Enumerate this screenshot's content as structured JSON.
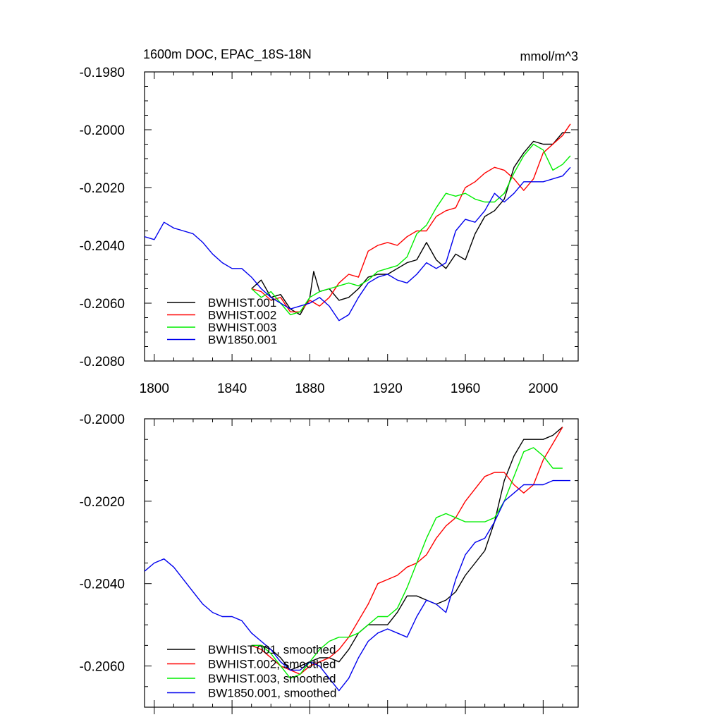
{
  "chart_data": [
    {
      "type": "line",
      "title": "1600m DOC, EPAC_18S-18N",
      "units": "mmol/m^3",
      "xlim": [
        1795,
        2018
      ],
      "ylim": [
        -0.208,
        -0.198
      ],
      "xticks": [
        1800,
        1840,
        1880,
        1920,
        1960,
        2000
      ],
      "yticks": [
        -0.208,
        -0.206,
        -0.204,
        -0.202,
        -0.2,
        -0.198
      ],
      "ytick_labels": [
        "-0.2080",
        "-0.2060",
        "-0.2040",
        "-0.2020",
        "-0.2000",
        "-0.1980"
      ],
      "legend_position": "bottom-left",
      "series": [
        {
          "name": "BWHIST.001",
          "color": "#000000",
          "x": [
            1850,
            1855,
            1860,
            1865,
            1870,
            1875,
            1880,
            1882,
            1885,
            1890,
            1895,
            1900,
            1905,
            1910,
            1915,
            1920,
            1925,
            1930,
            1935,
            1940,
            1945,
            1950,
            1955,
            1960,
            1965,
            1970,
            1975,
            1980,
            1985,
            1990,
            1995,
            2000,
            2005,
            2010,
            2014
          ],
          "y": [
            -0.2055,
            -0.2052,
            -0.2058,
            -0.2057,
            -0.2062,
            -0.2064,
            -0.2058,
            -0.2049,
            -0.2056,
            -0.2055,
            -0.2059,
            -0.2058,
            -0.2055,
            -0.2051,
            -0.205,
            -0.205,
            -0.2048,
            -0.2046,
            -0.2045,
            -0.2039,
            -0.2045,
            -0.2048,
            -0.2043,
            -0.2045,
            -0.2036,
            -0.203,
            -0.2028,
            -0.2024,
            -0.2013,
            -0.2008,
            -0.2004,
            -0.2005,
            -0.2005,
            -0.2001,
            -0.2001
          ]
        },
        {
          "name": "BWHIST.002",
          "color": "#ff0000",
          "x": [
            1850,
            1855,
            1860,
            1865,
            1870,
            1875,
            1880,
            1885,
            1890,
            1895,
            1900,
            1905,
            1910,
            1915,
            1920,
            1925,
            1930,
            1935,
            1940,
            1945,
            1950,
            1955,
            1960,
            1965,
            1970,
            1975,
            1980,
            1985,
            1990,
            1995,
            2000,
            2005,
            2010,
            2014
          ],
          "y": [
            -0.2055,
            -0.2056,
            -0.2059,
            -0.2058,
            -0.2063,
            -0.2063,
            -0.2059,
            -0.2061,
            -0.2058,
            -0.2053,
            -0.205,
            -0.2051,
            -0.2042,
            -0.204,
            -0.2039,
            -0.204,
            -0.2037,
            -0.2035,
            -0.2035,
            -0.203,
            -0.2028,
            -0.2027,
            -0.202,
            -0.2018,
            -0.2015,
            -0.2013,
            -0.2014,
            -0.2017,
            -0.2021,
            -0.2017,
            -0.2008,
            -0.2005,
            -0.2002,
            -0.1998
          ]
        },
        {
          "name": "BWHIST.003",
          "color": "#00ee00",
          "x": [
            1850,
            1855,
            1860,
            1865,
            1870,
            1875,
            1880,
            1885,
            1890,
            1895,
            1900,
            1905,
            1910,
            1915,
            1920,
            1925,
            1930,
            1935,
            1940,
            1945,
            1950,
            1955,
            1960,
            1965,
            1970,
            1975,
            1980,
            1985,
            1990,
            1995,
            2000,
            2005,
            2010,
            2014
          ],
          "y": [
            -0.2055,
            -0.2058,
            -0.2056,
            -0.206,
            -0.2064,
            -0.2063,
            -0.2058,
            -0.2056,
            -0.2055,
            -0.2054,
            -0.2053,
            -0.2054,
            -0.2052,
            -0.2049,
            -0.2048,
            -0.2047,
            -0.2044,
            -0.2036,
            -0.2033,
            -0.2027,
            -0.2022,
            -0.2023,
            -0.2022,
            -0.2024,
            -0.2025,
            -0.2025,
            -0.2022,
            -0.2015,
            -0.2009,
            -0.2005,
            -0.2007,
            -0.2014,
            -0.2012,
            -0.2009
          ]
        },
        {
          "name": "BW1850.001",
          "color": "#0000ee",
          "x": [
            1795,
            1800,
            1805,
            1810,
            1815,
            1820,
            1825,
            1830,
            1835,
            1840,
            1845,
            1850,
            1855,
            1860,
            1865,
            1870,
            1875,
            1880,
            1885,
            1890,
            1895,
            1900,
            1905,
            1910,
            1915,
            1920,
            1925,
            1930,
            1935,
            1940,
            1945,
            1950,
            1955,
            1960,
            1965,
            1970,
            1975,
            1980,
            1985,
            1990,
            1995,
            2000,
            2005,
            2010,
            2014
          ],
          "y": [
            -0.2037,
            -0.2038,
            -0.2032,
            -0.2034,
            -0.2035,
            -0.2036,
            -0.2039,
            -0.2043,
            -0.2046,
            -0.2048,
            -0.2048,
            -0.2051,
            -0.2055,
            -0.2058,
            -0.206,
            -0.2062,
            -0.2061,
            -0.206,
            -0.2058,
            -0.2061,
            -0.2066,
            -0.2064,
            -0.2058,
            -0.2053,
            -0.2051,
            -0.205,
            -0.2052,
            -0.2053,
            -0.205,
            -0.2046,
            -0.2048,
            -0.2046,
            -0.2035,
            -0.2031,
            -0.2032,
            -0.2028,
            -0.2022,
            -0.2025,
            -0.2022,
            -0.2018,
            -0.2018,
            -0.2018,
            -0.2017,
            -0.2016,
            -0.2013
          ]
        }
      ]
    },
    {
      "type": "line",
      "xlim": [
        1795,
        2018
      ],
      "ylim": [
        -0.207,
        -0.2
      ],
      "xticks": [
        1800,
        1840,
        1880,
        1920,
        1960,
        2000
      ],
      "yticks": [
        -0.206,
        -0.204,
        -0.202,
        -0.2
      ],
      "ytick_labels": [
        "-0.2060",
        "-0.2040",
        "-0.2020",
        "-0.2000"
      ],
      "legend_position": "bottom-left",
      "series": [
        {
          "name": "BWHIST.001, smoothed",
          "color": "#000000",
          "x": [
            1850,
            1855,
            1860,
            1865,
            1870,
            1875,
            1880,
            1885,
            1890,
            1895,
            1900,
            1905,
            1910,
            1915,
            1920,
            1925,
            1930,
            1935,
            1940,
            1945,
            1950,
            1955,
            1960,
            1965,
            1970,
            1975,
            1980,
            1985,
            1990,
            1995,
            2000,
            2005,
            2010
          ],
          "y": [
            -0.2055,
            -0.2055,
            -0.2056,
            -0.2058,
            -0.2061,
            -0.206,
            -0.2059,
            -0.2058,
            -0.2058,
            -0.2059,
            -0.2056,
            -0.2052,
            -0.205,
            -0.205,
            -0.205,
            -0.2047,
            -0.2043,
            -0.2043,
            -0.2044,
            -0.2045,
            -0.2044,
            -0.2042,
            -0.2038,
            -0.2035,
            -0.2032,
            -0.2025,
            -0.2015,
            -0.2009,
            -0.2005,
            -0.2005,
            -0.2005,
            -0.2004,
            -0.2002
          ]
        },
        {
          "name": "BWHIST.002, smoothed",
          "color": "#ff0000",
          "x": [
            1850,
            1855,
            1860,
            1865,
            1870,
            1875,
            1880,
            1885,
            1890,
            1895,
            1900,
            1905,
            1910,
            1915,
            1920,
            1925,
            1930,
            1935,
            1940,
            1945,
            1950,
            1955,
            1960,
            1965,
            1970,
            1975,
            1980,
            1985,
            1990,
            1995,
            2000,
            2005,
            2010
          ],
          "y": [
            -0.2055,
            -0.2056,
            -0.2058,
            -0.206,
            -0.2061,
            -0.2062,
            -0.206,
            -0.2059,
            -0.2058,
            -0.2056,
            -0.2053,
            -0.2049,
            -0.2045,
            -0.204,
            -0.2039,
            -0.2038,
            -0.2036,
            -0.2035,
            -0.2033,
            -0.2029,
            -0.2026,
            -0.2024,
            -0.202,
            -0.2017,
            -0.2014,
            -0.2013,
            -0.2013,
            -0.2016,
            -0.2018,
            -0.2016,
            -0.201,
            -0.2006,
            -0.2002
          ]
        },
        {
          "name": "BWHIST.003, smoothed",
          "color": "#00ee00",
          "x": [
            1850,
            1855,
            1860,
            1865,
            1870,
            1875,
            1880,
            1885,
            1890,
            1895,
            1900,
            1905,
            1910,
            1915,
            1920,
            1925,
            1930,
            1935,
            1940,
            1945,
            1950,
            1955,
            1960,
            1965,
            1970,
            1975,
            1980,
            1985,
            1990,
            1995,
            2000,
            2005,
            2010
          ],
          "y": [
            -0.2055,
            -0.2055,
            -0.2057,
            -0.206,
            -0.2063,
            -0.2062,
            -0.2059,
            -0.2056,
            -0.2054,
            -0.2053,
            -0.2053,
            -0.2052,
            -0.205,
            -0.2048,
            -0.2048,
            -0.2046,
            -0.2041,
            -0.2035,
            -0.2029,
            -0.2024,
            -0.2023,
            -0.2024,
            -0.2025,
            -0.2025,
            -0.2025,
            -0.2024,
            -0.202,
            -0.2014,
            -0.2008,
            -0.2007,
            -0.2009,
            -0.2012,
            -0.2012
          ]
        },
        {
          "name": "BW1850.001, smoothed",
          "color": "#0000ee",
          "x": [
            1795,
            1800,
            1805,
            1810,
            1815,
            1820,
            1825,
            1830,
            1835,
            1840,
            1845,
            1850,
            1855,
            1860,
            1865,
            1870,
            1875,
            1880,
            1885,
            1890,
            1895,
            1900,
            1905,
            1910,
            1915,
            1920,
            1925,
            1930,
            1935,
            1940,
            1945,
            1950,
            1955,
            1960,
            1965,
            1970,
            1975,
            1980,
            1985,
            1990,
            1995,
            2000,
            2005,
            2010,
            2014
          ],
          "y": [
            -0.2037,
            -0.2035,
            -0.2034,
            -0.2036,
            -0.2039,
            -0.2042,
            -0.2045,
            -0.2047,
            -0.2048,
            -0.2048,
            -0.2049,
            -0.2052,
            -0.2054,
            -0.2056,
            -0.2059,
            -0.2061,
            -0.2061,
            -0.2059,
            -0.206,
            -0.2063,
            -0.2066,
            -0.2063,
            -0.2058,
            -0.2054,
            -0.2052,
            -0.2051,
            -0.2052,
            -0.2053,
            -0.2048,
            -0.2044,
            -0.2045,
            -0.2047,
            -0.2039,
            -0.2033,
            -0.203,
            -0.2029,
            -0.2025,
            -0.202,
            -0.2018,
            -0.2016,
            -0.2016,
            -0.2016,
            -0.2015,
            -0.2015,
            -0.2015
          ]
        }
      ]
    }
  ]
}
